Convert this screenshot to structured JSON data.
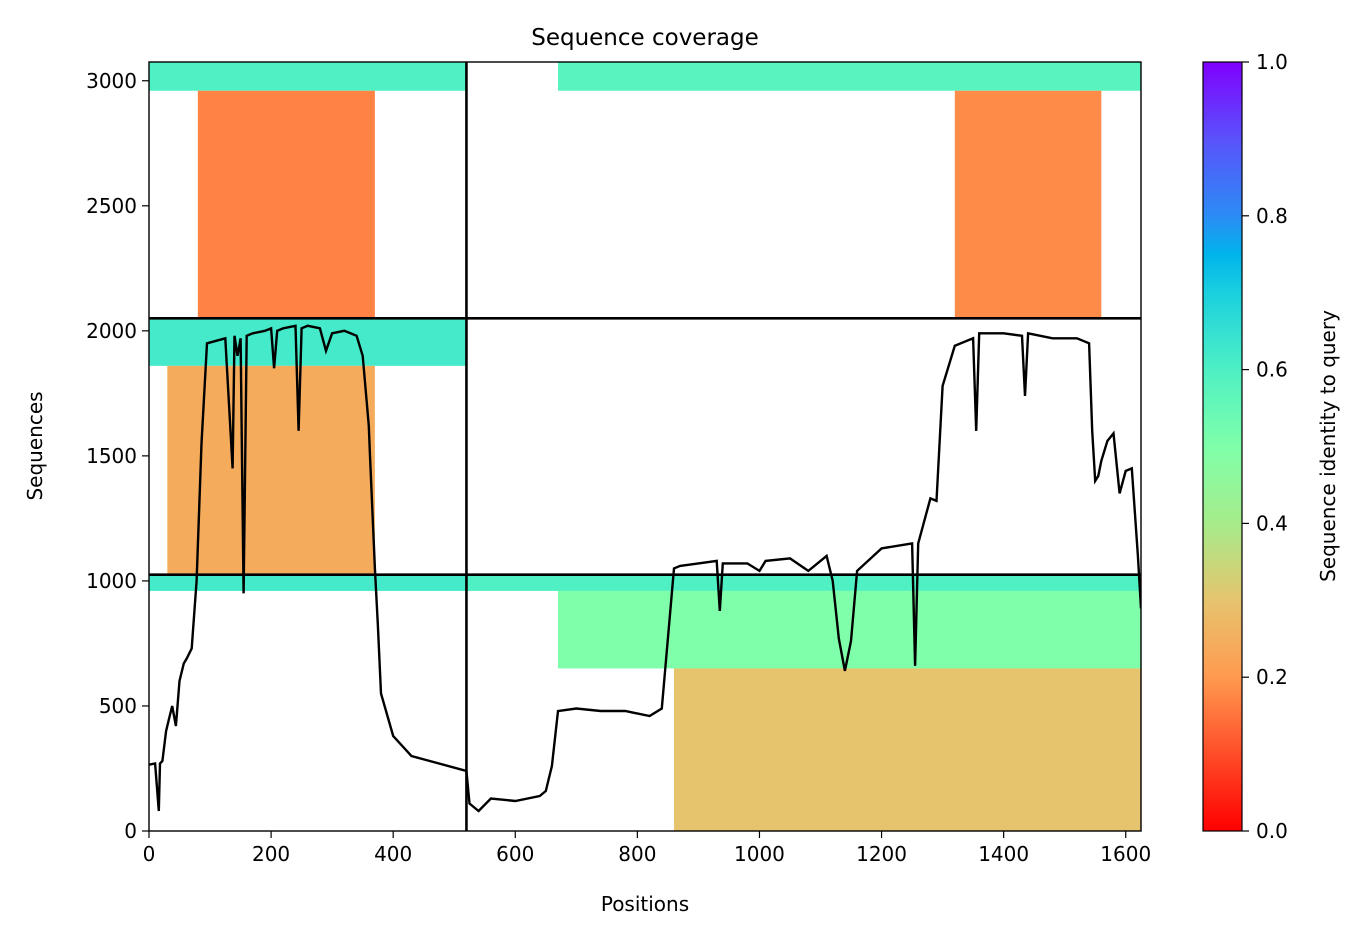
{
  "chart_data": {
    "type": "heatmap",
    "title": "Sequence coverage",
    "xlabel": "Positions",
    "ylabel": "Sequences",
    "xlim": [
      0,
      1625
    ],
    "ylim": [
      0,
      3075
    ],
    "x_ticks": [
      0,
      200,
      400,
      600,
      800,
      1000,
      1200,
      1400,
      1600
    ],
    "y_ticks": [
      0,
      500,
      1000,
      1500,
      2000,
      2500,
      3000
    ],
    "chain_breaks_x": [
      520
    ],
    "group_breaks_y": [
      1025,
      2050
    ],
    "colorbar": {
      "label": "Sequence identity to query",
      "colormap": "rainbow_r",
      "range": [
        0,
        1
      ],
      "ticks": [
        0.0,
        0.2,
        0.4,
        0.6,
        0.8,
        1.0
      ],
      "tick_labels": [
        "0.0",
        "0.2",
        "0.4",
        "0.6",
        "0.8",
        "1.0"
      ]
    },
    "regions": [
      {
        "name": "group1-chainA-top",
        "x": [
          0,
          520
        ],
        "y": [
          960,
          1025
        ],
        "identity": 0.62
      },
      {
        "name": "group1-chainA-low",
        "x": [
          0,
          520
        ],
        "y": [
          0,
          960
        ],
        "identity": 0.0,
        "empty": true
      },
      {
        "name": "group1-chainB-top",
        "x": [
          520,
          1625
        ],
        "y": [
          960,
          1025
        ],
        "identity": 0.6
      },
      {
        "name": "group1-chainB-mid",
        "x": [
          670,
          1625
        ],
        "y": [
          650,
          960
        ],
        "identity": 0.5
      },
      {
        "name": "group1-chainB-low",
        "x": [
          860,
          1625
        ],
        "y": [
          0,
          650
        ],
        "identity": 0.3
      },
      {
        "name": "group2-chainA-top",
        "x": [
          0,
          520
        ],
        "y": [
          1860,
          2050
        ],
        "identity": 0.62
      },
      {
        "name": "group2-chainA-body",
        "x": [
          30,
          370
        ],
        "y": [
          1025,
          1860
        ],
        "identity": 0.24
      },
      {
        "name": "group3-chainA-top",
        "x": [
          0,
          520
        ],
        "y": [
          2960,
          3075
        ],
        "identity": 0.6
      },
      {
        "name": "group3-chainA-body",
        "x": [
          80,
          370
        ],
        "y": [
          2050,
          2960
        ],
        "identity": 0.17
      },
      {
        "name": "group3-chainB-top",
        "x": [
          670,
          1625
        ],
        "y": [
          2960,
          3075
        ],
        "identity": 0.58
      },
      {
        "name": "group3-chainB-body",
        "x": [
          1320,
          1560
        ],
        "y": [
          2050,
          2960
        ],
        "identity": 0.18
      }
    ],
    "coverage_line": {
      "x": [
        0,
        10,
        16,
        18,
        22,
        28,
        33,
        38,
        44,
        50,
        57,
        62,
        70,
        78,
        86,
        95,
        110,
        125,
        137,
        140,
        145,
        150,
        155,
        160,
        170,
        190,
        200,
        205,
        210,
        220,
        240,
        245,
        250,
        260,
        280,
        290,
        300,
        320,
        340,
        350,
        360,
        362,
        370,
        375,
        380,
        400,
        430,
        460,
        520,
        525,
        530,
        540,
        560,
        600,
        640,
        650,
        660,
        670,
        700,
        740,
        780,
        820,
        840,
        860,
        870,
        900,
        930,
        935,
        940,
        980,
        1000,
        1010,
        1050,
        1080,
        1100,
        1110,
        1120,
        1130,
        1140,
        1150,
        1160,
        1200,
        1250,
        1255,
        1260,
        1280,
        1290,
        1300,
        1320,
        1350,
        1355,
        1360,
        1380,
        1400,
        1430,
        1435,
        1440,
        1460,
        1480,
        1500,
        1520,
        1540,
        1545,
        1550,
        1555,
        1560,
        1570,
        1580,
        1590,
        1600,
        1610,
        1620,
        1625
      ],
      "y": [
        265,
        270,
        80,
        270,
        280,
        400,
        450,
        500,
        420,
        600,
        670,
        690,
        730,
        1000,
        1550,
        1950,
        1960,
        1970,
        1450,
        1980,
        1900,
        1970,
        950,
        1980,
        1990,
        2000,
        2010,
        1850,
        2000,
        2010,
        2020,
        1600,
        2010,
        2020,
        2010,
        1920,
        1990,
        2000,
        1980,
        1900,
        1620,
        1500,
        1050,
        820,
        550,
        380,
        300,
        280,
        240,
        110,
        100,
        80,
        130,
        120,
        140,
        160,
        260,
        480,
        490,
        480,
        480,
        460,
        490,
        1050,
        1060,
        1070,
        1080,
        880,
        1070,
        1070,
        1040,
        1080,
        1090,
        1040,
        1080,
        1100,
        1000,
        770,
        640,
        760,
        1040,
        1130,
        1150,
        660,
        1150,
        1330,
        1320,
        1780,
        1940,
        1970,
        1600,
        1990,
        1990,
        1990,
        1980,
        1740,
        1990,
        1980,
        1970,
        1970,
        1970,
        1950,
        1600,
        1400,
        1420,
        1480,
        1560,
        1590,
        1350,
        1440,
        1450,
        1100,
        890
      ]
    }
  }
}
